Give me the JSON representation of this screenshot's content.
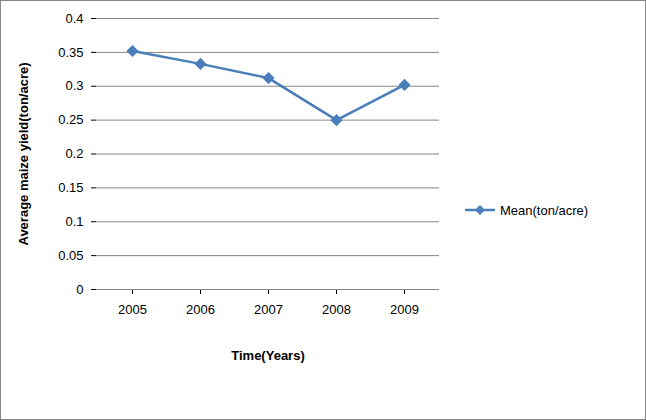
{
  "chart_data": {
    "type": "line",
    "x_label": "Time(Years)",
    "y_label": "Average maize yield(ton/acre)",
    "categories": [
      "2005",
      "2006",
      "2007",
      "2008",
      "2009"
    ],
    "series": [
      {
        "name": "Mean(ton/acre)",
        "color": "#4a7ebb",
        "marker": "diamond",
        "values": [
          0.352,
          0.333,
          0.312,
          0.25,
          0.302
        ]
      }
    ],
    "ylim": [
      0,
      0.4
    ],
    "yticks": [
      0,
      0.05,
      0.1,
      0.15,
      0.2,
      0.25,
      0.3,
      0.35,
      0.4
    ],
    "grid": true,
    "legend": "right"
  }
}
